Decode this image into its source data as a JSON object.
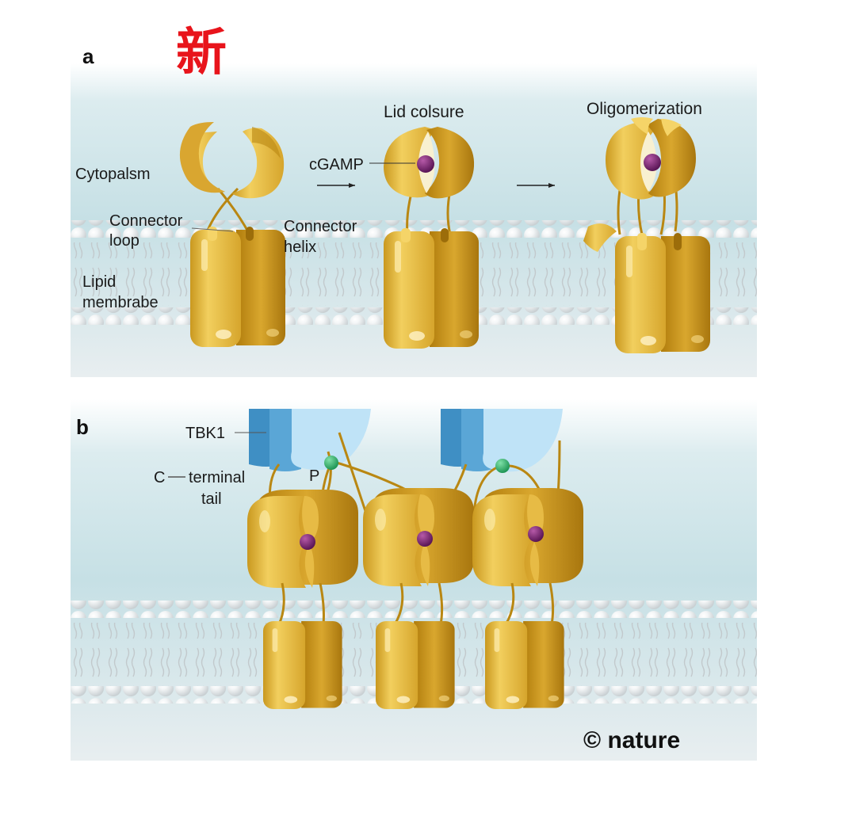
{
  "badge": "新",
  "panel_a": {
    "letter": "a",
    "labels": {
      "cytoplasm": "Cytopalsm",
      "connector_loop_1": "Connector",
      "connector_loop_2": "loop",
      "connector_helix_1": "Connector",
      "connector_helix_2": "helix",
      "lipid_1": "Lipid",
      "lipid_2": "membrabe",
      "cgamp": "cGAMP",
      "lid_closure": "Lid colsure",
      "oligomerization": "Oligomerization"
    }
  },
  "panel_b": {
    "letter": "b",
    "labels": {
      "tbk1": "TBK1",
      "c_terminal_1": "C",
      "c_terminal_2": "terminal",
      "c_terminal_3": "tail",
      "phospho": "P"
    }
  },
  "credit": "© nature",
  "colors": {
    "protein_gold": "#e0b03a",
    "protein_dark": "#b98712",
    "protein_light": "#f5d468",
    "cgamp": "#6e1f6b",
    "tbk1_blue": "#5aa6d6",
    "tbk1_light": "#bfe3f7",
    "phospho_green": "#2fb36b",
    "cytoplasm_bg": "#cfe6ea",
    "badge_red": "#e8141b"
  }
}
